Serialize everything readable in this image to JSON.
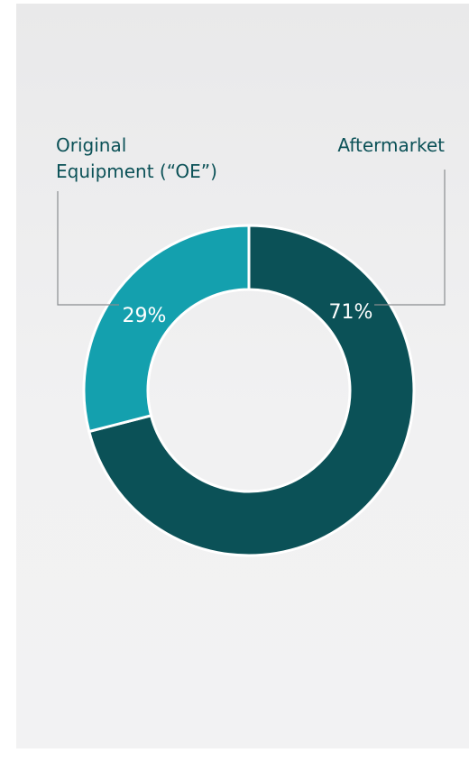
{
  "chart_data": {
    "type": "pie",
    "donut": true,
    "categories": [
      "Aftermarket",
      "Original Equipment (“OE”)"
    ],
    "values": [
      71,
      29
    ],
    "value_labels": [
      "71%",
      "29%"
    ],
    "colors": [
      "#0b5157",
      "#14a0ae"
    ],
    "legend": "none",
    "label_lines": {
      "aftermarket": [
        "Aftermarket"
      ],
      "oe": [
        "Original",
        "Equipment (“OE”)"
      ]
    }
  }
}
